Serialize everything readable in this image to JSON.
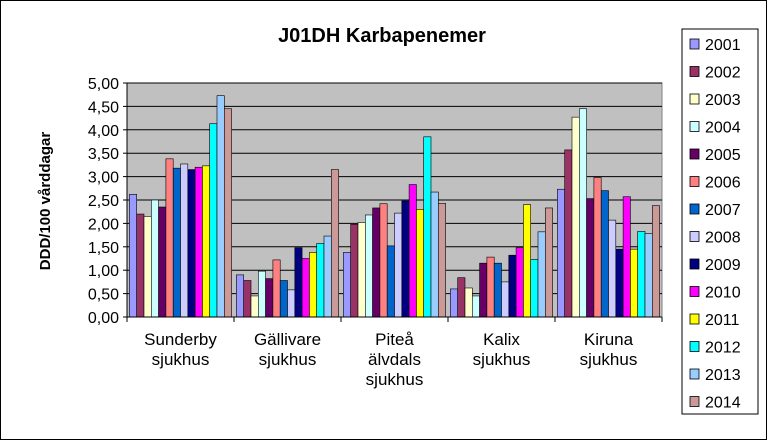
{
  "chart_data": {
    "type": "bar",
    "title": "J01DH  Karbapenemer",
    "ylabel": "DDD/100  vårddagar",
    "xlabel": "",
    "ylim": [
      0,
      5
    ],
    "ytick_step": 0.5,
    "y_tick_labels": [
      "0,00",
      "0,50",
      "1,00",
      "1,50",
      "2,00",
      "2,50",
      "3,00",
      "3,50",
      "4,00",
      "4,50",
      "5,00"
    ],
    "grid": true,
    "legend_position": "right",
    "categories": [
      [
        "Sunderby",
        "sjukhus"
      ],
      [
        "Gällivare",
        "sjukhus"
      ],
      [
        "Piteå",
        "älvdals",
        "sjukhus"
      ],
      [
        "Kalix",
        "sjukhus"
      ],
      [
        "Kiruna",
        "sjukhus"
      ]
    ],
    "series": [
      {
        "name": "2001",
        "color": "#9999FF",
        "values": [
          2.62,
          0.9,
          1.38,
          0.6,
          2.73
        ]
      },
      {
        "name": "2002",
        "color": "#993366",
        "values": [
          2.2,
          0.78,
          1.98,
          0.84,
          3.57
        ]
      },
      {
        "name": "2003",
        "color": "#FFFFCC",
        "values": [
          2.15,
          0.45,
          2.02,
          0.62,
          4.27
        ]
      },
      {
        "name": "2004",
        "color": "#CCFFFF",
        "values": [
          2.5,
          0.98,
          2.18,
          0.45,
          4.45
        ]
      },
      {
        "name": "2005",
        "color": "#660066",
        "values": [
          2.35,
          0.82,
          2.33,
          1.15,
          2.53
        ]
      },
      {
        "name": "2006",
        "color": "#FF8080",
        "values": [
          3.38,
          1.22,
          2.42,
          1.28,
          2.98
        ]
      },
      {
        "name": "2007",
        "color": "#0066CC",
        "values": [
          3.18,
          0.78,
          1.52,
          1.15,
          2.7
        ]
      },
      {
        "name": "2008",
        "color": "#CCCCFF",
        "values": [
          3.27,
          0.58,
          2.22,
          0.75,
          2.07
        ]
      },
      {
        "name": "2009",
        "color": "#000080",
        "values": [
          3.15,
          1.48,
          2.48,
          1.32,
          1.45
        ]
      },
      {
        "name": "2010",
        "color": "#FF00FF",
        "values": [
          3.2,
          1.25,
          2.83,
          1.48,
          2.57
        ]
      },
      {
        "name": "2011",
        "color": "#FFFF00",
        "values": [
          3.23,
          1.38,
          2.3,
          2.4,
          1.45
        ]
      },
      {
        "name": "2012",
        "color": "#00FFFF",
        "values": [
          4.13,
          1.57,
          3.85,
          1.23,
          1.83
        ]
      },
      {
        "name": "2013",
        "color": "#99CCFF",
        "values": [
          4.73,
          1.73,
          2.67,
          1.82,
          1.78
        ]
      },
      {
        "name": "2014",
        "color": "#CC9999",
        "values": [
          4.45,
          3.15,
          2.43,
          2.33,
          2.38
        ]
      }
    ]
  }
}
